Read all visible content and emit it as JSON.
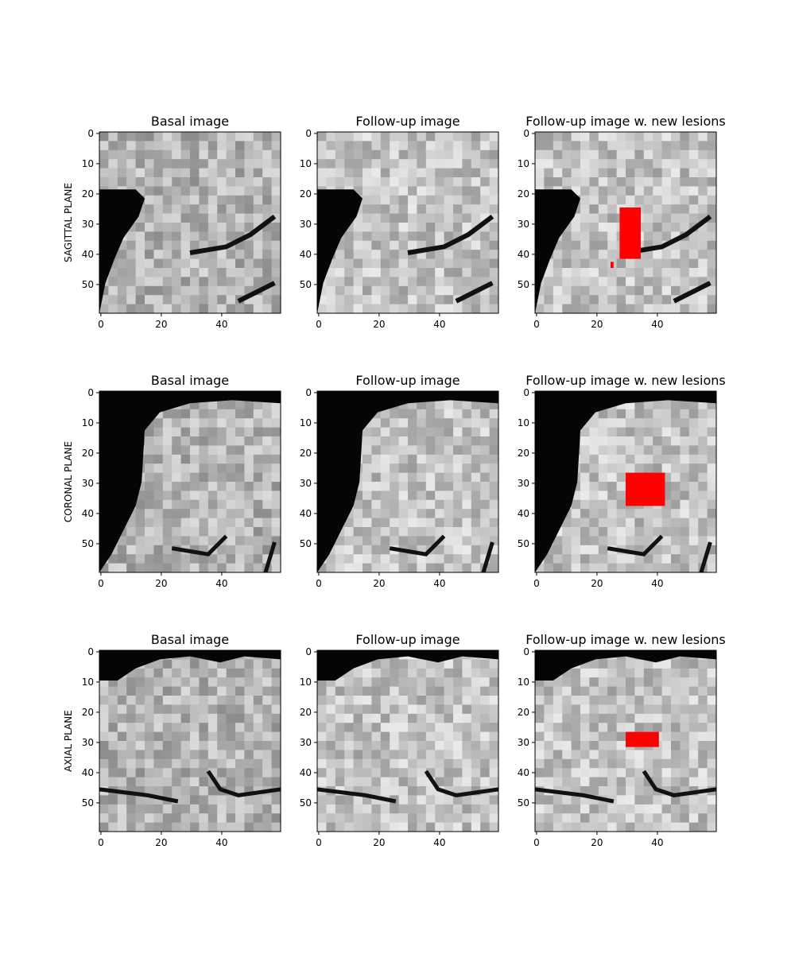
{
  "figure": {
    "column_titles": [
      "Basal image",
      "Follow-up image",
      "Follow-up image w. new lesions"
    ],
    "row_labels": [
      "SAGITTAL PLANE",
      "CORONAL PLANE",
      "AXIAL PLANE"
    ]
  },
  "chart_data": {
    "type": "heatmap",
    "grid": "3x3 image panels",
    "image_size": [
      60,
      60
    ],
    "x_ticks": [
      0,
      20,
      40
    ],
    "y_ticks": [
      0,
      10,
      20,
      30,
      40,
      50
    ],
    "xlim": [
      -0.5,
      59.5
    ],
    "ylim": [
      59.5,
      -0.5
    ],
    "grid_lines": false,
    "colormap": "gray",
    "lesion_color": "#ff0000",
    "panels": [
      {
        "row": "SAGITTAL PLANE",
        "title": "Basal image"
      },
      {
        "row": "SAGITTAL PLANE",
        "title": "Follow-up image"
      },
      {
        "row": "SAGITTAL PLANE",
        "title": "Follow-up image w. new lesions",
        "lesion_mask_approx": {
          "x_range": [
            28,
            35
          ],
          "y_range": [
            25,
            42
          ],
          "extra_pixel": [
            25,
            43
          ]
        }
      },
      {
        "row": "CORONAL PLANE",
        "title": "Basal image"
      },
      {
        "row": "CORONAL PLANE",
        "title": "Follow-up image"
      },
      {
        "row": "CORONAL PLANE",
        "title": "Follow-up image w. new lesions",
        "lesion_mask_approx": {
          "x_range": [
            30,
            43
          ],
          "y_range": [
            27,
            38
          ]
        }
      },
      {
        "row": "AXIAL PLANE",
        "title": "Basal image"
      },
      {
        "row": "AXIAL PLANE",
        "title": "Follow-up image"
      },
      {
        "row": "AXIAL PLANE",
        "title": "Follow-up image w. new lesions",
        "lesion_mask_approx": {
          "x_range": [
            30,
            41
          ],
          "y_range": [
            27,
            32
          ]
        }
      }
    ]
  }
}
